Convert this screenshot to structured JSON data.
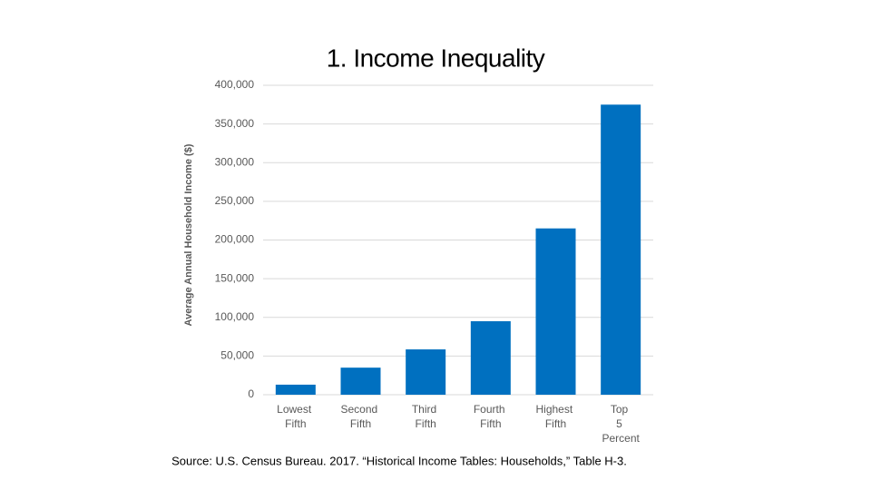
{
  "chart_data": {
    "type": "bar",
    "title": "1. Income Inequality",
    "y_label": "Average Annual Household Income ($)",
    "source": "Source: U.S. Census Bureau. 2017. “Historical Income Tables: Households,” Table H-3.",
    "categories": [
      "Lowest Fifth",
      "Second Fifth",
      "Third Fifth",
      "Fourth Fifth",
      "Highest Fifth",
      "Top 5 Percent"
    ],
    "values": [
      13000,
      35000,
      58600,
      95000,
      215000,
      375000
    ],
    "color": "#0070c0",
    "ylim": [
      0,
      400000
    ],
    "yticks": [
      0,
      {
        "value": 50000,
        "label": "50,000"
      },
      {
        "value": 100000,
        "label": "100,000"
      },
      {
        "value": 150000,
        "label": "150,000"
      },
      {
        "value": 200000,
        "label": "200,000"
      },
      {
        "value": 250000,
        "label": "250,000"
      },
      {
        "value": 300000,
        "label": "300,000"
      },
      {
        "value": 350000,
        "label": "350,000"
      },
      {
        "value": 400000,
        "label": "400,000"
      }
    ],
    "grid": true
  }
}
